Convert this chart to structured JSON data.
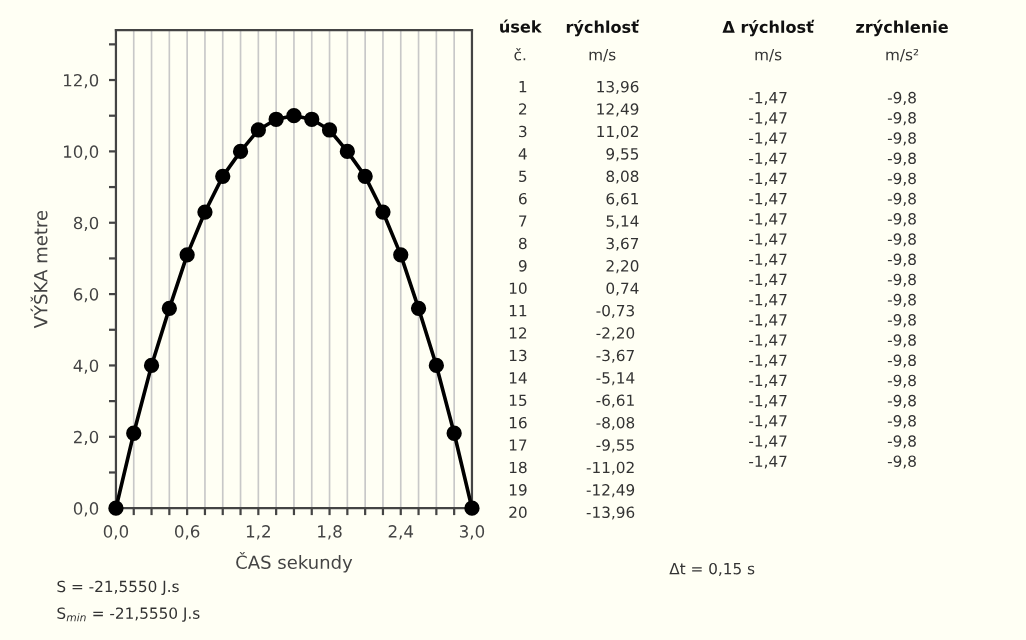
{
  "chart_data": [
    {
      "type": "line",
      "xlabel": "ČAS sekundy",
      "ylabel": "VÝŠKA metre",
      "x": [
        0,
        0.15,
        0.3,
        0.45,
        0.6,
        0.75,
        0.9,
        1.05,
        1.2,
        1.35,
        1.5,
        1.65,
        1.8,
        1.95,
        2.1,
        2.25,
        2.4,
        2.55,
        2.7,
        2.85,
        3.0
      ],
      "series": [
        {
          "color": "#000000",
          "values": [
            0,
            2.1,
            4.0,
            5.6,
            7.1,
            8.3,
            9.3,
            10.0,
            10.6,
            10.9,
            11.0,
            10.9,
            10.6,
            10.0,
            9.3,
            8.3,
            7.1,
            5.6,
            4.0,
            2.1,
            0
          ]
        }
      ],
      "marker": "circle",
      "line_style": "solid",
      "grid": "x",
      "xlim": [
        0,
        3
      ],
      "ylim": [
        0,
        13.4
      ],
      "xticks": [
        {
          "value": 0,
          "label": "0,0"
        },
        {
          "value": 0.15,
          "label": null
        },
        {
          "value": 0.3,
          "label": null
        },
        {
          "value": 0.45,
          "label": null
        },
        {
          "value": 0.6,
          "label": "0,6"
        },
        {
          "value": 0.75,
          "label": null
        },
        {
          "value": 0.9,
          "label": null
        },
        {
          "value": 1.05,
          "label": null
        },
        {
          "value": 1.2,
          "label": "1,2"
        },
        {
          "value": 1.35,
          "label": null
        },
        {
          "value": 1.5,
          "label": null
        },
        {
          "value": 1.65,
          "label": null
        },
        {
          "value": 1.8,
          "label": "1,8"
        },
        {
          "value": 1.95,
          "label": null
        },
        {
          "value": 2.1,
          "label": null
        },
        {
          "value": 2.25,
          "label": null
        },
        {
          "value": 2.4,
          "label": "2,4"
        },
        {
          "value": 2.55,
          "label": null
        },
        {
          "value": 2.7,
          "label": null
        },
        {
          "value": 2.85,
          "label": null
        },
        {
          "value": 3.0,
          "label": "3,0"
        }
      ],
      "yticks": [
        {
          "value": 0,
          "label": "0,0"
        },
        {
          "value": 1,
          "label": null
        },
        {
          "value": 2,
          "label": "2,0"
        },
        {
          "value": 3,
          "label": null
        },
        {
          "value": 4,
          "label": "4,0"
        },
        {
          "value": 5,
          "label": null
        },
        {
          "value": 6,
          "label": "6,0"
        },
        {
          "value": 7,
          "label": null
        },
        {
          "value": 8,
          "label": "8,0"
        },
        {
          "value": 9,
          "label": null
        },
        {
          "value": 10,
          "label": "10,0"
        },
        {
          "value": 11,
          "label": null
        },
        {
          "value": 12,
          "label": "12,0"
        },
        {
          "value": 13,
          "label": null
        }
      ],
      "annotations": [
        "S = -21,5550 J.s",
        "S$_{min}$ = -21,5550 J.s"
      ]
    },
    {
      "type": "other",
      "annotations": [
        "úsek",
        "rýchlosť",
        "Δ rýchlosť",
        "zrýchlenie",
        "č.",
        "m/s",
        "m/s",
        "m/s²",
        "1",
        "2",
        "3",
        "4",
        "5",
        "6",
        "7",
        "8",
        "9",
        "10",
        "11",
        "12",
        "13",
        "14",
        "15",
        "16",
        "17",
        "18",
        "19",
        "20",
        "13,96",
        "12,49",
        "11,02",
        "9,55",
        "8,08",
        "6,61",
        "5,14",
        "3,67",
        "2,20",
        "0,74",
        "-0,73",
        "-2,20",
        "-3,67",
        "-5,14",
        "-6,61",
        "-8,08",
        "-9,55",
        "-11,02",
        "-12,49",
        "-13,96",
        "-1,47",
        "-1,47",
        "-1,47",
        "-1,47",
        "-1,47",
        "-1,47",
        "-1,47",
        "-1,47",
        "-1,47",
        "-1,47",
        "-1,47",
        "-1,47",
        "-1,47",
        "-1,47",
        "-1,47",
        "-1,47",
        "-1,47",
        "-1,47",
        "-1,47",
        "-9,8",
        "-9,8",
        "-9,8",
        "-9,8",
        "-9,8",
        "-9,8",
        "-9,8",
        "-9,8",
        "-9,8",
        "-9,8",
        "-9,8",
        "-9,8",
        "-9,8",
        "-9,8",
        "-9,8",
        "-9,8",
        "-9,8",
        "-9,8",
        "-9,8",
        "Δt = 0,15 s"
      ]
    }
  ]
}
